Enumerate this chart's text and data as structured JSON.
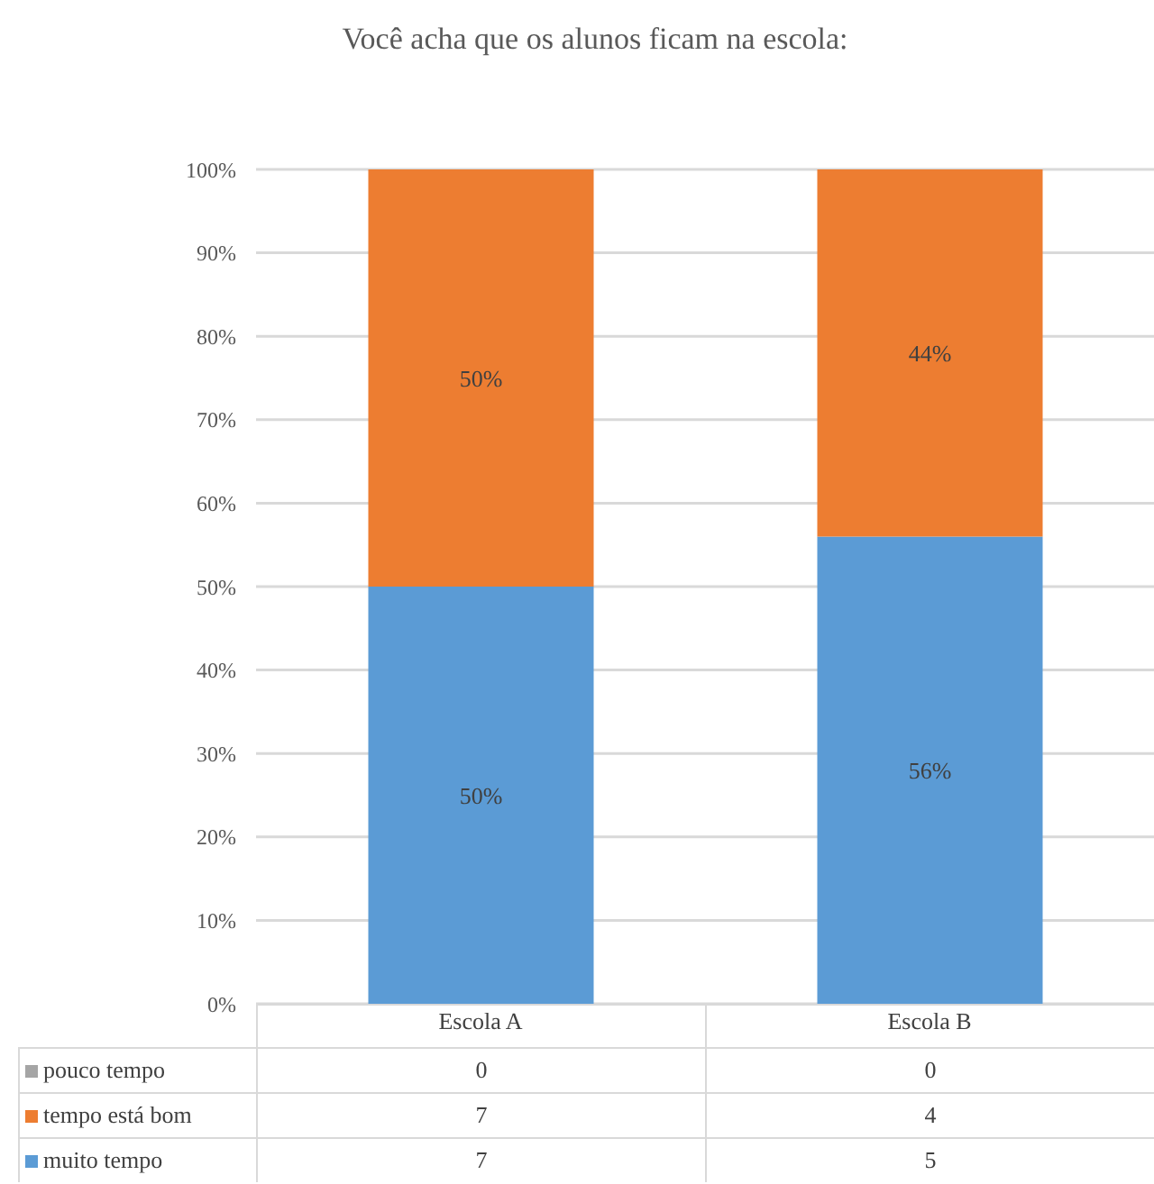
{
  "chart_data": {
    "type": "bar",
    "title": "Você acha que os alunos ficam na escola:",
    "categories": [
      "Escola A",
      "Escola B"
    ],
    "series": [
      {
        "name": "muito tempo",
        "color": "#5b9bd5",
        "values": [
          50,
          56
        ],
        "value_labels": [
          "50%",
          "56%"
        ]
      },
      {
        "name": "tempo está bom",
        "color": "#ed7d31",
        "values": [
          50,
          44
        ],
        "value_labels": [
          "50%",
          "44%"
        ]
      },
      {
        "name": "pouco tempo",
        "color": "#a5a5a5",
        "values": [
          0,
          0
        ]
      }
    ],
    "stacked": true,
    "ylim": [
      0,
      100
    ],
    "yticks": [
      {
        "value": 0,
        "label": "0%"
      },
      {
        "value": 10,
        "label": "10%"
      },
      {
        "value": 20,
        "label": "20%"
      },
      {
        "value": 30,
        "label": "30%"
      },
      {
        "value": 40,
        "label": "40%"
      },
      {
        "value": 50,
        "label": "50%"
      },
      {
        "value": 60,
        "label": "60%"
      },
      {
        "value": 70,
        "label": "70%"
      },
      {
        "value": 80,
        "label": "80%"
      },
      {
        "value": 90,
        "label": "90%"
      },
      {
        "value": 100,
        "label": "100%"
      }
    ],
    "grid": "y",
    "legend": "bottom",
    "annotations": [
      "0",
      "0",
      "7",
      "4",
      "7",
      "5"
    ]
  }
}
